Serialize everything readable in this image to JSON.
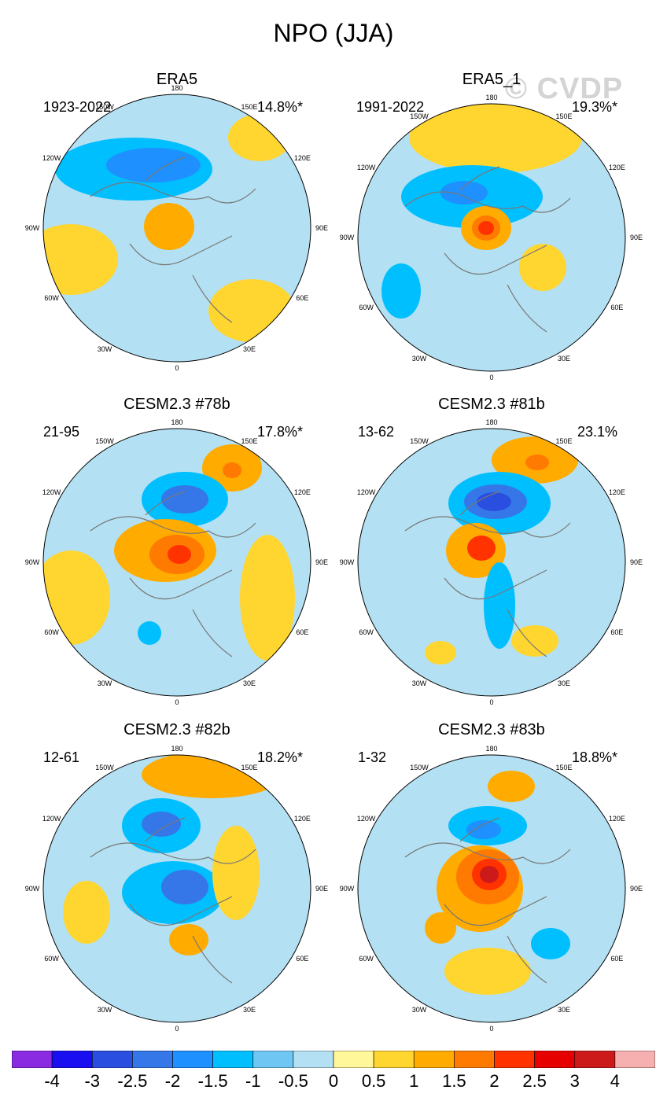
{
  "page_title": "NPO (JJA)",
  "watermark": "© CVDP",
  "chart_data": [
    {
      "type": "heatmap",
      "title": "ERA5",
      "period": "1923-2022",
      "variance": "14.8%*",
      "anomalies": [
        {
          "center": "Aleutian/Bering",
          "sign": "negative",
          "peak": -1.5
        },
        {
          "center": "Arctic",
          "sign": "positive",
          "peak": 1.0
        },
        {
          "center": "Gulf of Alaska",
          "sign": "positive",
          "peak": 0.5
        }
      ]
    },
    {
      "type": "heatmap",
      "title": "ERA5_1",
      "period": "1991-2022",
      "variance": "19.3%*",
      "anomalies": [
        {
          "center": "Arctic",
          "sign": "positive",
          "peak": 2.0
        },
        {
          "center": "Bering Sea",
          "sign": "negative",
          "peak": -1.5
        },
        {
          "center": "North Pacific",
          "sign": "positive",
          "peak": 1.0
        }
      ]
    },
    {
      "type": "heatmap",
      "title": "CESM2.3 #78b",
      "period": "21-95",
      "variance": "17.8%*",
      "anomalies": [
        {
          "center": "Arctic",
          "sign": "positive",
          "peak": 2.0
        },
        {
          "center": "Bering Sea",
          "sign": "negative",
          "peak": -2.0
        },
        {
          "center": "North Pacific",
          "sign": "positive",
          "peak": 1.5
        }
      ]
    },
    {
      "type": "heatmap",
      "title": "CESM2.3 #81b",
      "period": "13-62",
      "variance": "23.1%",
      "anomalies": [
        {
          "center": "Bering Sea",
          "sign": "negative",
          "peak": -2.5
        },
        {
          "center": "Arctic",
          "sign": "positive",
          "peak": 2.0
        },
        {
          "center": "North Pacific",
          "sign": "positive",
          "peak": 1.5
        }
      ]
    },
    {
      "type": "heatmap",
      "title": "CESM2.3 #82b",
      "period": "12-61",
      "variance": "18.2%*",
      "anomalies": [
        {
          "center": "Bering Sea",
          "sign": "negative",
          "peak": -2.0
        },
        {
          "center": "Arctic",
          "sign": "negative",
          "peak": -2.0
        },
        {
          "center": "North Pacific",
          "sign": "positive",
          "peak": 1.0
        }
      ]
    },
    {
      "type": "heatmap",
      "title": "CESM2.3 #83b",
      "period": "1-32",
      "variance": "18.8%*",
      "anomalies": [
        {
          "center": "Arctic",
          "sign": "positive",
          "peak": 3.0
        },
        {
          "center": "Bering Sea",
          "sign": "negative",
          "peak": -1.5
        },
        {
          "center": "North Pacific",
          "sign": "positive",
          "peak": 1.0
        }
      ]
    }
  ],
  "longitude_labels": [
    "180",
    "150E",
    "120E",
    "90E",
    "60E",
    "30E",
    "0",
    "30W",
    "60W",
    "90W",
    "120W",
    "150W"
  ],
  "colorbar": {
    "colors": [
      "#8a2be2",
      "#1a0ff0",
      "#2a4ee0",
      "#3577e8",
      "#1e90ff",
      "#00bfff",
      "#6fc6f2",
      "#b3e0f2",
      "#fff799",
      "#ffd530",
      "#ffab00",
      "#ff7a00",
      "#ff3200",
      "#e60000",
      "#cc1a1a",
      "#f7b0b0"
    ],
    "labels": [
      "-4",
      "-3",
      "-2.5",
      "-2",
      "-1.5",
      "-1",
      "-0.5",
      "0",
      "0.5",
      "1",
      "1.5",
      "2",
      "2.5",
      "3",
      "4"
    ]
  }
}
